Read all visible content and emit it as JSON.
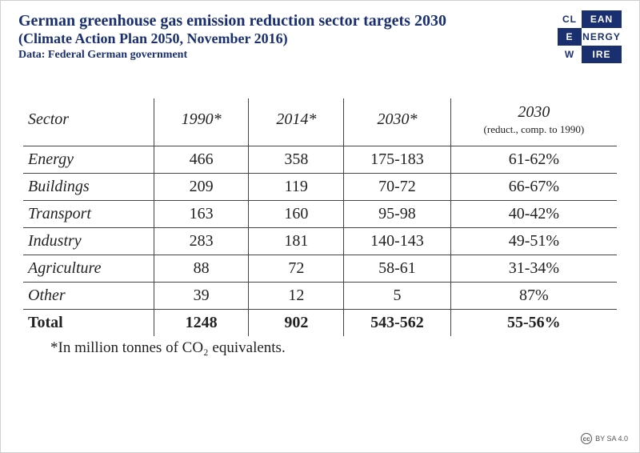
{
  "header": {
    "title": "German greenhouse gas emission reduction sector targets 2030",
    "subtitle": "(Climate Action Plan 2050, November 2016)",
    "source": "Data: Federal German government"
  },
  "logo": {
    "rows": [
      {
        "left": "CL",
        "left_bg": "#ffffff",
        "left_fg": "#1a2f6f",
        "right": "EAN",
        "right_bg": "#1a2f6f",
        "right_fg": "#ffffff"
      },
      {
        "left": "E",
        "left_bg": "#1a2f6f",
        "left_fg": "#ffffff",
        "right": "NERGY",
        "right_bg": "#ffffff",
        "right_fg": "#1a2f6f"
      },
      {
        "left": "W",
        "left_bg": "#ffffff",
        "left_fg": "#1a2f6f",
        "right": "IRE",
        "right_bg": "#1a2f6f",
        "right_fg": "#ffffff"
      }
    ]
  },
  "table": {
    "columns": {
      "sector": "Sector",
      "y1990": "1990*",
      "y2014": "2014*",
      "y2030": "2030*",
      "r2030": "2030",
      "r2030_sub": "(reduct., comp. to 1990)"
    },
    "rows": [
      {
        "sector": "Energy",
        "y1990": "466",
        "y2014": "358",
        "y2030": "175-183",
        "r2030": "61-62%"
      },
      {
        "sector": "Buildings",
        "y1990": "209",
        "y2014": "119",
        "y2030": "70-72",
        "r2030": "66-67%"
      },
      {
        "sector": "Transport",
        "y1990": "163",
        "y2014": "160",
        "y2030": "95-98",
        "r2030": "40-42%"
      },
      {
        "sector": "Industry",
        "y1990": "283",
        "y2014": "181",
        "y2030": "140-143",
        "r2030": "49-51%"
      },
      {
        "sector": "Agriculture",
        "y1990": "88",
        "y2014": "72",
        "y2030": "58-61",
        "r2030": "31-34%"
      },
      {
        "sector": "Other",
        "y1990": "39",
        "y2014": "12",
        "y2030": "5",
        "r2030": "87%"
      }
    ],
    "total": {
      "sector": "Total",
      "y1990": "1248",
      "y2014": "902",
      "y2030": "543-562",
      "r2030": "55-56%"
    }
  },
  "footnote": "*In million tonnes of CO₂ equivalents.",
  "license": {
    "badge": "cc",
    "text": "BY SA 4.0"
  },
  "style": {
    "title_color": "#1a2f6f",
    "border_color": "#444444",
    "col_widths_pct": [
      22,
      16,
      16,
      18,
      28
    ]
  }
}
